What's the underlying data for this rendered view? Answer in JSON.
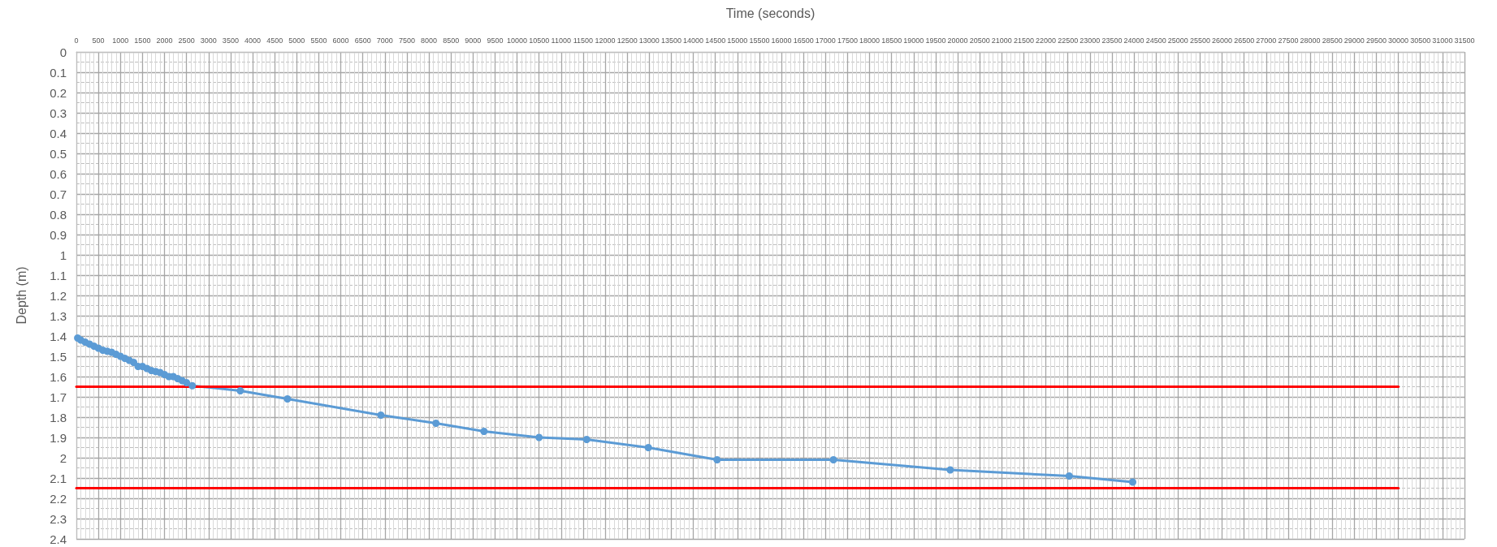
{
  "chart_data": {
    "type": "line",
    "xlabel": "Time (seconds)",
    "ylabel": "Depth (m)",
    "grid": true,
    "xlim": [
      0,
      31500
    ],
    "xticks": [
      0,
      500,
      1000,
      1500,
      2000,
      2500,
      3000,
      3500,
      4000,
      4500,
      5000,
      5500,
      6000,
      6500,
      7000,
      7500,
      8000,
      8500,
      9000,
      9500,
      10000,
      10500,
      11000,
      11500,
      12000,
      12500,
      13000,
      13500,
      14000,
      14500,
      15000,
      15500,
      16000,
      16500,
      17000,
      17500,
      18000,
      18500,
      19000,
      19500,
      20000,
      20500,
      21000,
      21500,
      22000,
      22500,
      23000,
      23500,
      24000,
      24500,
      25000,
      25500,
      26000,
      26500,
      27000,
      27500,
      28000,
      28500,
      29000,
      29500,
      30000,
      30500,
      31000,
      31500
    ],
    "ylim": [
      2.4,
      0
    ],
    "yticks": [
      0,
      0.1,
      0.2,
      0.3,
      0.4,
      0.5,
      0.6,
      0.7,
      0.8,
      0.9,
      1,
      1.1,
      1.2,
      1.3,
      1.4,
      1.5,
      1.6,
      1.7,
      1.8,
      1.9,
      2,
      2.1,
      2.2,
      2.3,
      2.4
    ],
    "series": [
      {
        "color": "#5b9bd5",
        "marker": "circle",
        "x": [
          30,
          100,
          200,
          300,
          400,
          500,
          600,
          700,
          800,
          900,
          1000,
          1100,
          1200,
          1300,
          1400,
          1500,
          1600,
          1700,
          1800,
          1900,
          2000,
          2100,
          2200,
          2300,
          2400,
          2500,
          2630,
          3720,
          4790,
          6910,
          8160,
          9250,
          10500,
          11580,
          12980,
          14540,
          17180,
          19830,
          22530,
          23970
        ],
        "values": [
          1.41,
          1.42,
          1.43,
          1.44,
          1.45,
          1.46,
          1.47,
          1.475,
          1.48,
          1.49,
          1.5,
          1.51,
          1.52,
          1.53,
          1.55,
          1.55,
          1.56,
          1.57,
          1.575,
          1.58,
          1.59,
          1.6,
          1.6,
          1.61,
          1.62,
          1.63,
          1.645,
          1.67,
          1.71,
          1.79,
          1.83,
          1.87,
          1.9,
          1.91,
          1.95,
          2.01,
          2.01,
          2.06,
          2.09,
          2.12
        ]
      },
      {
        "color": "#ff0000",
        "marker": "none",
        "x": [
          0,
          30000
        ],
        "values": [
          1.65,
          1.65
        ]
      },
      {
        "color": "#ff0000",
        "marker": "none",
        "x": [
          0,
          30000
        ],
        "values": [
          2.15,
          2.15
        ]
      }
    ]
  }
}
